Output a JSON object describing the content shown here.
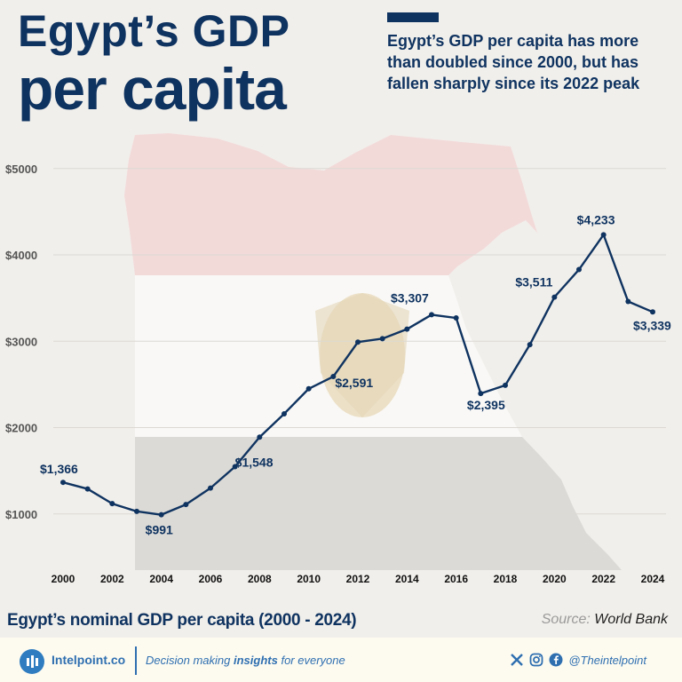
{
  "header": {
    "title_line1": "Egypt’s GDP",
    "title_line2": "per capita",
    "subtitle": "Egypt’s GDP per capita has more than doubled since 2000, but has fallen sharply since its 2022 peak"
  },
  "chart_data": {
    "type": "line",
    "title": "Egypt’s nominal GDP per capita (2000 - 2024)",
    "xlabel": "",
    "ylabel": "",
    "x": [
      2000,
      2001,
      2002,
      2003,
      2004,
      2005,
      2006,
      2007,
      2008,
      2009,
      2010,
      2011,
      2012,
      2013,
      2014,
      2015,
      2016,
      2017,
      2018,
      2019,
      2020,
      2021,
      2022,
      2023,
      2024
    ],
    "series": [
      {
        "name": "",
        "values": [
          1366,
          1290,
          1120,
          1030,
          991,
          1110,
          1300,
          1548,
          1890,
          2160,
          2450,
          2591,
          2990,
          3030,
          3140,
          3307,
          3270,
          2395,
          2490,
          2960,
          3511,
          3830,
          4233,
          3460,
          3339
        ]
      }
    ],
    "data_labels": [
      {
        "year": 2000,
        "text": "$1,366"
      },
      {
        "year": 2004,
        "text": "$991"
      },
      {
        "year": 2007,
        "text": "$1,548"
      },
      {
        "year": 2011,
        "text": "$2,591"
      },
      {
        "year": 2015,
        "text": "$3,307"
      },
      {
        "year": 2017,
        "text": "$2,395"
      },
      {
        "year": 2020,
        "text": "$3,511"
      },
      {
        "year": 2022,
        "text": "$4,233"
      },
      {
        "year": 2024,
        "text": "$3,339"
      }
    ],
    "x_ticks": [
      "2000",
      "2002",
      "2004",
      "2006",
      "2008",
      "2010",
      "2012",
      "2014",
      "2016",
      "2018",
      "2020",
      "2022",
      "2024"
    ],
    "y_ticks": [
      "$1000",
      "$2000",
      "$3000",
      "$4000",
      "$5000"
    ],
    "y_tick_values": [
      1000,
      2000,
      3000,
      4000,
      5000
    ],
    "ylim": [
      350,
      5450
    ],
    "xlim": [
      2000,
      2024
    ],
    "grid": true,
    "line_color": "#0f3360",
    "background_map_colors": [
      "#f2d6d6",
      "#ffffff",
      "#dcdad6"
    ]
  },
  "footer": {
    "caption": "Egypt’s nominal GDP per capita (2000 - 2024)",
    "source_label": "Source:",
    "source_name": "World Bank",
    "brand": "Intelpoint.co",
    "tagline_pre": "Decision making ",
    "tagline_bold": "insights",
    "tagline_post": " for everyone",
    "handle": "@Theintelpoint",
    "accent_color": "#2f7dc0"
  }
}
